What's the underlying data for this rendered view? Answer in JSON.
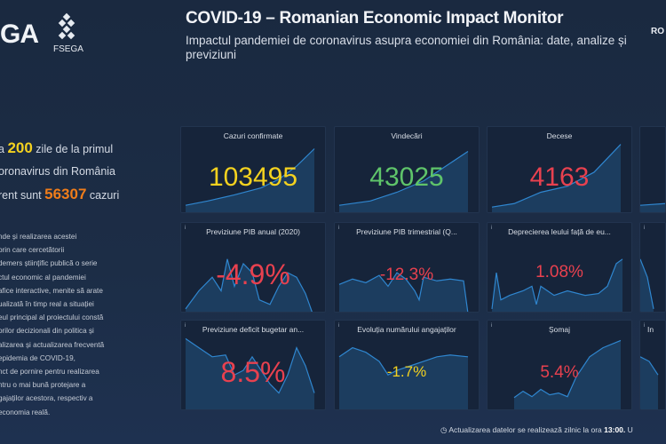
{
  "header": {
    "logo_left": "GA",
    "logo_right": "FSEGA",
    "title": "COVID-19 – Romanian Economic Impact Monitor",
    "subtitle": "Impactul pandemiei de coronavirus asupra economiei din România: date, analize și previziuni",
    "lang": "RO"
  },
  "intro": {
    "l1a": "a",
    "days": "200",
    "l1b": "zile de la primul",
    "l2": "oronavirus din România",
    "l3a": "rent sunt",
    "active": "56307",
    "l3b": "cazuri"
  },
  "description": [
    "nde și realizarea acestei",
    "prin care cercetătorii",
    "demers științific publică o serie",
    "ctul economic al pandemiei",
    "afice interactive, menite să arate",
    "ualizată în timp real a situației",
    "eul principal al proiectului constă",
    "orilor decizionali din politica și",
    "alizarea și actualizarea frecventă",
    "epidemia de COVID-19,",
    "nct de pornire pentru realizarea",
    "ntru o mai bună protejare a",
    "gajaților acestora, respectiv a",
    "economia reală."
  ],
  "colors": {
    "yellow": "#f4d21f",
    "green": "#5fc46a",
    "red": "#e8414f",
    "orange": "#f07d1a",
    "line": "#2f86cf"
  },
  "cards": [
    {
      "title": "Cazuri confirmate",
      "value": "103495",
      "color": "#f4d21f"
    },
    {
      "title": "Vindecări",
      "value": "43025",
      "color": "#5fc46a"
    },
    {
      "title": "Decese",
      "value": "4163",
      "color": "#e8414f"
    },
    {
      "title": "",
      "value": ""
    },
    {
      "title": "Previziune PIB anual (2020)",
      "value": "-4.9%",
      "color": "#e8414f"
    },
    {
      "title": "Previziune PIB trimestrial (Q...",
      "value": "-12.3%",
      "color": "#e8414f"
    },
    {
      "title": "Deprecierea leului față de eu...",
      "value": "1.08%",
      "color": "#e8414f"
    },
    {
      "title": "",
      "value": ""
    },
    {
      "title": "Previziune deficit bugetar an...",
      "value": "8.5%",
      "color": "#e8414f"
    },
    {
      "title": "Evoluția numărului angajaților",
      "value": "-1.7%",
      "color": "#f4d21f"
    },
    {
      "title": "Șomaj",
      "value": "5.4%",
      "color": "#e8414f"
    },
    {
      "title": "In",
      "value": ""
    }
  ],
  "footer": {
    "text": "Actualizarea datelor se realizează zilnic la ora",
    "time": "13:00.",
    "tail": "U"
  }
}
